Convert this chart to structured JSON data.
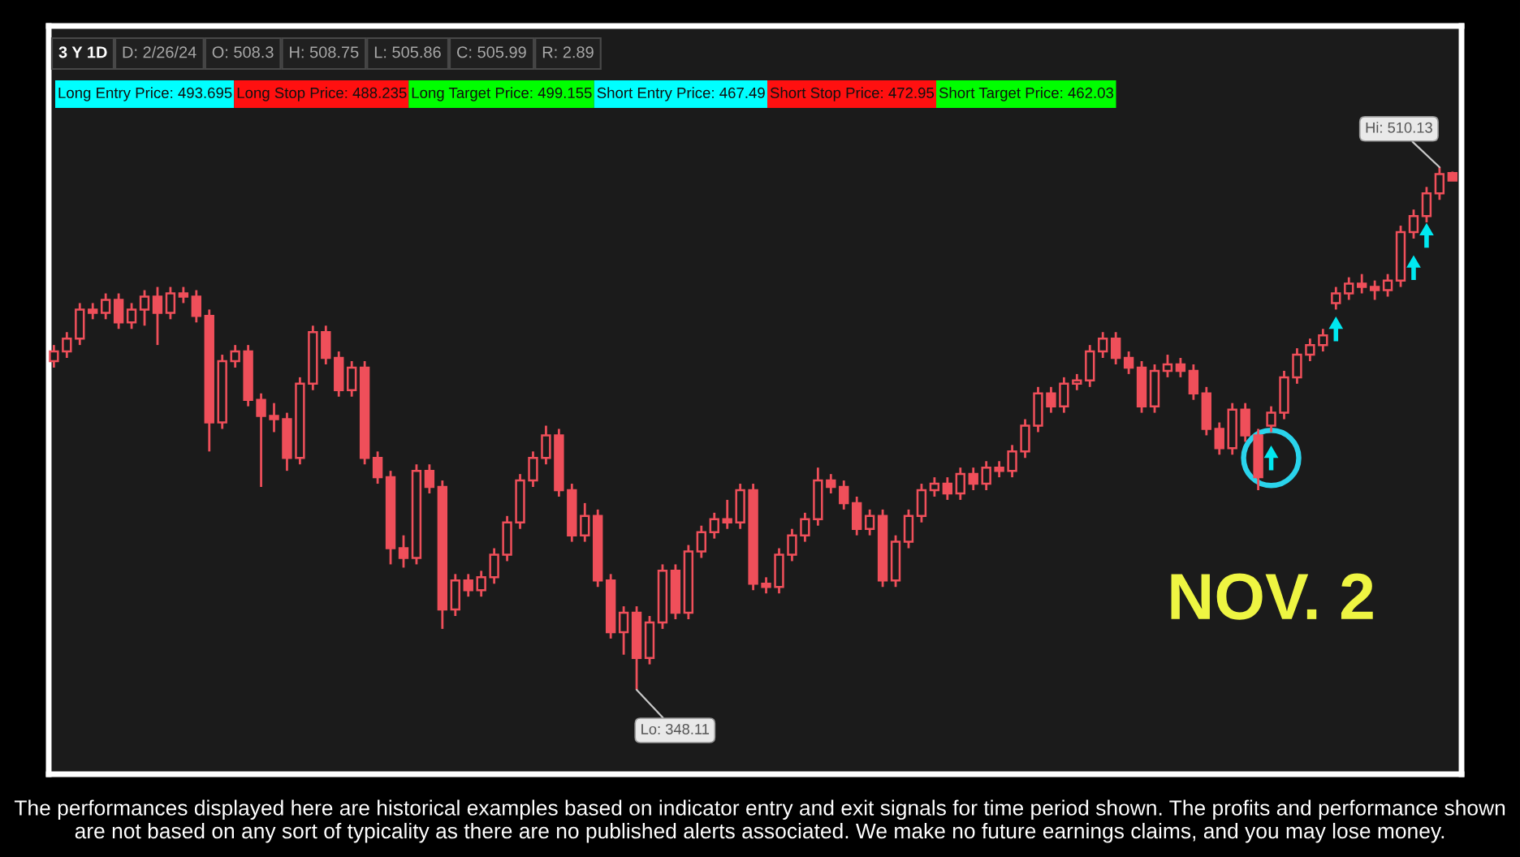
{
  "chart_data": {
    "type": "candlestick",
    "title": "3 Y 1D",
    "color": "#ef4f5a",
    "marker": "triangle",
    "categories": [
      null,
      null,
      null,
      null,
      null,
      null,
      null,
      null,
      null,
      null,
      null,
      null,
      null,
      null,
      null,
      null,
      null,
      null,
      null,
      null,
      null,
      null,
      null,
      null,
      null,
      null,
      null,
      null,
      null,
      null,
      null,
      null,
      null,
      null,
      null,
      null,
      null,
      null,
      null,
      null,
      null,
      null,
      null,
      null,
      null,
      null,
      null,
      null,
      null,
      null,
      null,
      null,
      null,
      null,
      null,
      null,
      null,
      null,
      null,
      null,
      null,
      null,
      null,
      null,
      null,
      null,
      null,
      null,
      null,
      null,
      null,
      null,
      null,
      null,
      null,
      null,
      null,
      null,
      null,
      null,
      null,
      null,
      null,
      null,
      null,
      null,
      null,
      null,
      null,
      null,
      null,
      null,
      null,
      null,
      null,
      null,
      null,
      null,
      null,
      null,
      null,
      null,
      null,
      null,
      null,
      null,
      null,
      null,
      null
    ],
    "ohlc": [
      [
        450,
        455,
        448,
        453
      ],
      [
        453,
        459,
        451,
        457
      ],
      [
        457,
        468,
        455,
        466
      ],
      [
        466,
        468,
        463,
        465
      ],
      [
        465,
        471,
        463,
        469
      ],
      [
        469,
        471,
        460,
        462
      ],
      [
        462,
        468,
        460,
        466
      ],
      [
        466,
        472,
        461,
        470
      ],
      [
        470,
        473,
        455,
        465
      ],
      [
        465,
        473,
        463,
        471
      ],
      [
        471,
        473,
        468,
        470
      ],
      [
        470,
        472,
        462,
        464
      ],
      [
        464,
        466,
        422,
        431
      ],
      [
        431,
        452,
        429,
        450
      ],
      [
        450,
        455,
        448,
        453
      ],
      [
        453,
        455,
        436,
        438
      ],
      [
        438,
        440,
        411,
        433
      ],
      [
        433,
        437,
        428,
        432
      ],
      [
        432,
        434,
        416,
        420
      ],
      [
        420,
        445,
        418,
        443
      ],
      [
        443,
        461,
        441,
        459
      ],
      [
        459,
        461,
        449,
        451
      ],
      [
        451,
        453,
        439,
        441
      ],
      [
        441,
        450,
        439,
        448
      ],
      [
        448,
        450,
        418,
        420
      ],
      [
        420,
        422,
        412,
        414
      ],
      [
        414,
        416,
        387,
        392
      ],
      [
        392,
        396,
        386,
        389
      ],
      [
        389,
        418,
        387,
        416
      ],
      [
        416,
        418,
        409,
        411
      ],
      [
        411,
        413,
        367,
        373
      ],
      [
        373,
        384,
        371,
        382
      ],
      [
        382,
        384,
        377,
        379
      ],
      [
        379,
        385,
        377,
        383
      ],
      [
        383,
        392,
        381,
        390
      ],
      [
        390,
        402,
        388,
        400
      ],
      [
        400,
        415,
        398,
        413
      ],
      [
        413,
        422,
        411,
        420
      ],
      [
        420,
        430,
        418,
        427
      ],
      [
        427,
        429,
        408,
        410
      ],
      [
        410,
        412,
        394,
        396
      ],
      [
        396,
        406,
        394,
        402
      ],
      [
        402,
        404,
        380,
        382
      ],
      [
        382,
        384,
        364,
        366
      ],
      [
        366,
        374,
        359,
        372
      ],
      [
        372,
        374,
        348.11,
        358
      ],
      [
        358,
        371,
        356,
        369
      ],
      [
        369,
        387,
        367,
        385
      ],
      [
        385,
        387,
        370,
        372
      ],
      [
        372,
        393,
        370,
        391
      ],
      [
        391,
        399,
        389,
        397
      ],
      [
        397,
        403,
        395,
        401
      ],
      [
        401,
        407,
        398,
        400
      ],
      [
        400,
        412,
        398,
        410
      ],
      [
        410,
        412,
        379,
        381
      ],
      [
        381,
        383,
        378,
        380
      ],
      [
        380,
        392,
        378,
        390
      ],
      [
        390,
        398,
        388,
        396
      ],
      [
        396,
        403,
        394,
        401
      ],
      [
        401,
        417,
        399,
        413
      ],
      [
        413,
        415,
        409,
        411
      ],
      [
        411,
        413,
        404,
        406
      ],
      [
        406,
        408,
        396,
        398
      ],
      [
        398,
        404,
        396,
        402
      ],
      [
        402,
        404,
        380,
        382
      ],
      [
        382,
        396,
        380,
        394
      ],
      [
        394,
        404,
        392,
        402
      ],
      [
        402,
        412,
        400,
        410
      ],
      [
        410,
        414,
        408,
        412
      ],
      [
        412,
        414,
        407,
        409
      ],
      [
        409,
        417,
        407,
        415
      ],
      [
        415,
        417,
        410,
        412
      ],
      [
        412,
        419,
        410,
        417
      ],
      [
        417,
        419,
        414,
        416
      ],
      [
        416,
        424,
        414,
        422
      ],
      [
        422,
        432,
        420,
        430
      ],
      [
        430,
        442,
        428,
        440
      ],
      [
        440,
        442,
        434,
        436
      ],
      [
        436,
        445,
        434,
        443
      ],
      [
        443,
        446,
        441,
        444
      ],
      [
        444,
        455,
        442,
        453
      ],
      [
        453,
        459,
        451,
        457
      ],
      [
        457,
        459,
        449,
        451
      ],
      [
        451,
        453,
        446,
        448
      ],
      [
        448,
        450,
        434,
        436
      ],
      [
        436,
        449,
        434,
        447
      ],
      [
        447,
        452,
        445,
        449
      ],
      [
        449,
        451,
        445,
        447
      ],
      [
        447,
        449,
        438,
        440
      ],
      [
        440,
        442,
        427,
        429
      ],
      [
        429,
        431,
        421,
        423
      ],
      [
        423,
        437,
        421,
        435
      ],
      [
        435,
        437,
        425,
        427
      ],
      [
        427,
        429,
        410,
        414
      ],
      [
        430,
        436,
        428,
        434
      ],
      [
        434,
        447,
        432,
        445
      ],
      [
        445,
        454,
        443,
        452
      ],
      [
        452,
        457,
        450,
        455
      ],
      [
        455,
        460,
        453,
        458
      ],
      [
        468,
        473,
        466,
        471
      ],
      [
        471,
        476,
        469,
        474
      ],
      [
        474,
        477,
        471,
        473
      ],
      [
        473,
        475,
        469,
        472
      ],
      [
        472,
        477,
        470,
        475
      ],
      [
        475,
        492,
        473,
        490
      ],
      [
        490,
        497,
        488,
        495
      ],
      [
        495,
        504,
        493,
        502
      ],
      [
        502,
        510.13,
        500,
        508
      ],
      [
        508.3,
        508.75,
        505.86,
        505.99
      ]
    ],
    "series": [
      {
        "type": "scatter",
        "color": "#00e8f0",
        "values": [
          null,
          null,
          null,
          null,
          null,
          null,
          null,
          null,
          null,
          null,
          null,
          null,
          null,
          null,
          null,
          null,
          null,
          null,
          null,
          null,
          null,
          null,
          null,
          null,
          null,
          null,
          null,
          null,
          null,
          null,
          null,
          null,
          null,
          null,
          null,
          null,
          null,
          null,
          null,
          null,
          null,
          null,
          null,
          null,
          null,
          null,
          null,
          null,
          null,
          null,
          null,
          null,
          null,
          null,
          null,
          null,
          null,
          null,
          null,
          null,
          null,
          null,
          null,
          null,
          null,
          null,
          null,
          null,
          null,
          null,
          null,
          null,
          null,
          null,
          null,
          null,
          null,
          null,
          null,
          null,
          null,
          null,
          null,
          null,
          null,
          null,
          null,
          null,
          null,
          null,
          null,
          null,
          null,
          null,
          420,
          null,
          null,
          null,
          null,
          460,
          null,
          null,
          null,
          null,
          null,
          479,
          489,
          null,
          null
        ]
      }
    ],
    "annotations": [
      "D: 2/26/24",
      "O: 508.3",
      "H: 508.75",
      "L: 505.86",
      "C: 505.99",
      "R: 2.89",
      "Long Entry Price: 493.695",
      "Long Stop Price: 488.235",
      "Long Target Price: 499.155",
      "Short Entry Price: 467.49",
      "Short Stop Price: 472.95",
      "Short Target Price: 462.03",
      "Hi: 510.13",
      "Lo: 348.11",
      "NOV. 2",
      "The performances displayed here are historical examples based on indicator entry and exit signals for time period shown. The profits and performance shown are not based on any sort of typicality as there are no published alerts associated. We make no future earnings claims, and you may lose money."
    ]
  }
}
